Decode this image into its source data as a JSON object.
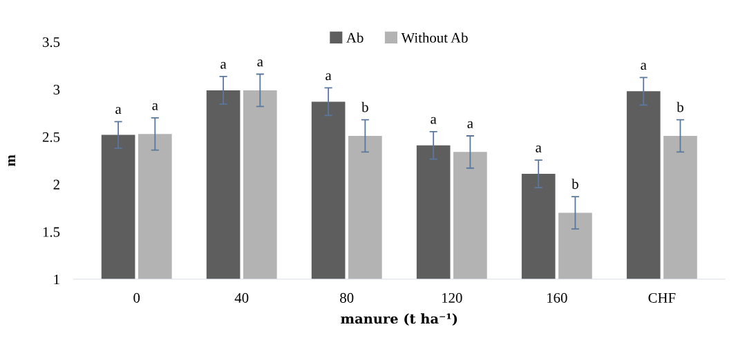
{
  "chart_data": {
    "type": "bar",
    "xlabel": "manure (t ha⁻¹)",
    "ylabel": "m",
    "categories": [
      "0",
      "40",
      "80",
      "120",
      "160",
      "CHF"
    ],
    "series": [
      {
        "name": "Ab",
        "color": "#5e5e5e",
        "values": [
          2.52,
          2.99,
          2.87,
          2.41,
          2.11,
          2.98
        ],
        "errors": [
          0.14,
          0.145,
          0.145,
          0.145,
          0.145,
          0.145
        ]
      },
      {
        "name": "Without Ab",
        "color": "#b3b3b3",
        "values": [
          2.53,
          2.99,
          2.51,
          2.34,
          1.7,
          2.51
        ],
        "errors": [
          0.17,
          0.17,
          0.17,
          0.17,
          0.17,
          0.17
        ]
      }
    ],
    "ylim": [
      1,
      3.5
    ],
    "yticks": [
      1,
      1.5,
      2,
      2.5,
      3,
      3.5
    ],
    "grid": false,
    "legend": "top",
    "annotations": [
      "a",
      "a",
      "a",
      "a",
      "a",
      "b",
      "a",
      "a",
      "a",
      "b",
      "a",
      "b"
    ]
  }
}
